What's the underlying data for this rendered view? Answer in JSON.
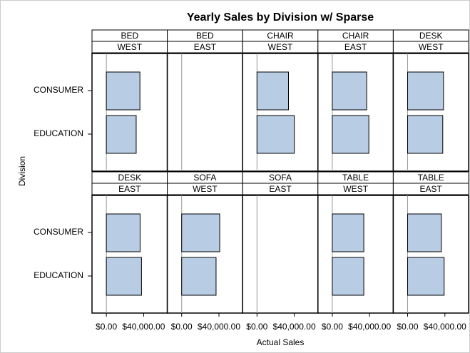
{
  "chart_data": {
    "type": "bar",
    "orientation": "horizontal",
    "title": "Yearly Sales by Division w/ Sparse",
    "x_label": "Actual Sales",
    "y_label": "Division",
    "categories": [
      "CONSUMER",
      "EDUCATION"
    ],
    "color": "#b8cce4",
    "xlim": [
      -15400,
      65400
    ],
    "xticks": [
      {
        "value": 0,
        "label": "$0.00"
      },
      {
        "value": 40000,
        "label": "$40,000.00"
      }
    ],
    "panels": [
      {
        "product": "BED",
        "region": "WEST",
        "values": [
          36000,
          32000
        ]
      },
      {
        "product": "BED",
        "region": "EAST",
        "values": [
          null,
          null
        ]
      },
      {
        "product": "CHAIR",
        "region": "WEST",
        "values": [
          33800,
          40000
        ]
      },
      {
        "product": "CHAIR",
        "region": "EAST",
        "values": [
          36900,
          39200
        ]
      },
      {
        "product": "DESK",
        "region": "WEST",
        "values": [
          38500,
          37700
        ]
      },
      {
        "product": "DESK",
        "region": "EAST",
        "values": [
          36200,
          37700
        ]
      },
      {
        "product": "SOFA",
        "region": "WEST",
        "values": [
          40800,
          36900
        ]
      },
      {
        "product": "SOFA",
        "region": "EAST",
        "values": [
          null,
          null
        ]
      },
      {
        "product": "TABLE",
        "region": "WEST",
        "values": [
          33800,
          33800
        ]
      },
      {
        "product": "TABLE",
        "region": "EAST",
        "values": [
          36200,
          39200
        ]
      }
    ]
  }
}
